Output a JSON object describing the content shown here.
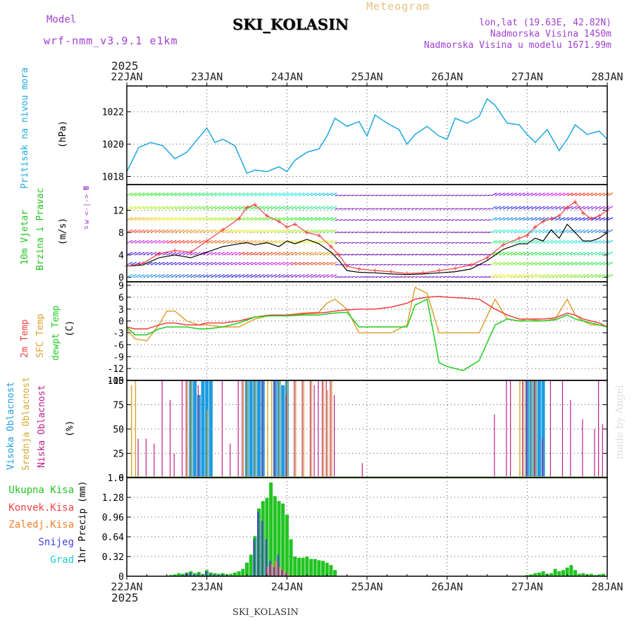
{
  "header": {
    "model_label": "Model",
    "model_name": "wrf-nmm_v3.9.1 e1km",
    "title": "SKI_KOLASIN",
    "meteogram_label": "Meteogram",
    "lonlat": "lon,lat (19.63E, 42.82N)",
    "elevation": "Nadmorska Visina 1450m",
    "model_elevation": "Nadmorska Visina u modelu 1671.99m",
    "year_top": "2025",
    "year_bottom": "2025",
    "footer_station": "SKI_KOLASIN",
    "credit": "made by Angel"
  },
  "colors": {
    "pressure": "#1ea8e0",
    "temp2m": "#f04040",
    "sfc": "#e0a030",
    "dewpt": "#20cc20",
    "total": "#22c422",
    "conv": "#f04040",
    "frozen": "#f08030",
    "snow": "#4444dd",
    "grad": "#22cccc",
    "cloud_high": "#1e9ce0",
    "cloud_mid": "#d8a830",
    "cloud_low": "#c0208a",
    "model_text": "#a040d0"
  },
  "chart_data": [
    {
      "type": "line",
      "name": "pressure",
      "y_title": "Pritisak na nivou mora",
      "unit": "(hPa)",
      "ylim": [
        1017.5,
        1023.6
      ],
      "yticks": [
        1018,
        1020,
        1022
      ],
      "x_days": [
        0,
        0.15,
        0.3,
        0.45,
        0.6,
        0.75,
        0.9,
        1.0,
        1.1,
        1.2,
        1.35,
        1.5,
        1.6,
        1.75,
        1.9,
        2.0,
        2.1,
        2.25,
        2.4,
        2.5,
        2.6,
        2.75,
        2.9,
        3.0,
        3.1,
        3.25,
        3.4,
        3.5,
        3.6,
        3.75,
        3.9,
        4.0,
        4.1,
        4.25,
        4.4,
        4.5,
        4.6,
        4.75,
        4.9,
        5.0,
        5.1,
        5.25,
        5.4,
        5.5,
        5.6,
        5.75,
        5.9,
        6.0
      ],
      "values": [
        1018.3,
        1019.8,
        1020.1,
        1019.9,
        1019.1,
        1019.5,
        1020.4,
        1021.0,
        1020.1,
        1020.3,
        1019.9,
        1018.2,
        1018.4,
        1018.3,
        1018.6,
        1018.3,
        1019.0,
        1019.5,
        1019.7,
        1020.5,
        1021.6,
        1021.1,
        1021.4,
        1020.5,
        1021.8,
        1021.3,
        1020.9,
        1020.0,
        1020.6,
        1021.1,
        1020.5,
        1020.3,
        1021.6,
        1021.3,
        1021.7,
        1022.8,
        1022.4,
        1021.3,
        1021.2,
        1020.6,
        1020.1,
        1020.9,
        1019.6,
        1020.3,
        1021.2,
        1020.6,
        1020.8,
        1020.3
      ]
    },
    {
      "type": "line",
      "name": "wind",
      "y_title_1": "10m Vjetar",
      "y_title_2": "Brzina i Pravac",
      "unit": "(m/s)",
      "compass": [
        "N",
        "w <-|-> E",
        "s"
      ],
      "ylim": [
        -0.8,
        16.6
      ],
      "yticks": [
        0,
        4,
        8,
        12
      ],
      "x_days": [
        0,
        0.2,
        0.4,
        0.6,
        0.8,
        1.0,
        1.2,
        1.4,
        1.5,
        1.6,
        1.75,
        1.9,
        2.0,
        2.1,
        2.25,
        2.4,
        2.55,
        2.65,
        2.75,
        2.9,
        3.1,
        3.3,
        3.5,
        3.7,
        3.9,
        4.1,
        4.3,
        4.5,
        4.7,
        4.9,
        5.0,
        5.1,
        5.2,
        5.3,
        5.4,
        5.5,
        5.6,
        5.7,
        5.8,
        5.9,
        6.0
      ],
      "speed_mean": [
        2.0,
        2.2,
        3.5,
        4.0,
        3.5,
        4.5,
        5.5,
        6.0,
        6.2,
        5.8,
        6.2,
        5.5,
        6.5,
        6.0,
        6.8,
        6.0,
        4.5,
        3.0,
        1.2,
        0.9,
        0.8,
        0.6,
        0.5,
        0.6,
        0.8,
        1.0,
        1.5,
        3.0,
        5.0,
        6.0,
        6.0,
        7.0,
        6.5,
        8.5,
        7.0,
        9.5,
        8.0,
        6.5,
        6.5,
        7.0,
        8.0
      ],
      "speed_gust": [
        2.0,
        2.5,
        4.2,
        4.8,
        4.5,
        6.5,
        8.5,
        10.5,
        12.5,
        13.0,
        11.0,
        10.0,
        9.0,
        9.5,
        8.0,
        7.5,
        5.5,
        4.0,
        2.0,
        1.5,
        1.2,
        1.0,
        0.7,
        0.8,
        1.2,
        1.6,
        2.2,
        3.5,
        5.8,
        7.0,
        7.5,
        9.0,
        10.0,
        10.5,
        11.0,
        12.5,
        13.5,
        11.5,
        10.5,
        11.0,
        12.0
      ]
    },
    {
      "type": "line",
      "name": "temperature",
      "y_title_1": "2m Temp",
      "y_title_2": "SFC Temp",
      "y_title_3": "dewpt Temp",
      "unit": "(C)",
      "ylim": [
        -15,
        9.9
      ],
      "yticks": [
        9,
        6,
        3,
        0,
        -3,
        -6,
        -9,
        -12,
        -15
      ],
      "x_days": [
        0,
        0.1,
        0.25,
        0.4,
        0.5,
        0.6,
        0.75,
        0.9,
        1.0,
        1.2,
        1.4,
        1.6,
        1.8,
        2.0,
        2.2,
        2.4,
        2.5,
        2.6,
        2.75,
        2.9,
        3.1,
        3.3,
        3.5,
        3.6,
        3.75,
        3.9,
        4.0,
        4.2,
        4.4,
        4.6,
        4.75,
        4.9,
        5.0,
        5.2,
        5.35,
        5.5,
        5.6,
        5.7,
        5.8,
        5.9,
        6.0
      ],
      "t2m": [
        -1.5,
        -2.0,
        -2.0,
        -1.0,
        -0.5,
        -0.5,
        -1.0,
        -1.0,
        -0.5,
        -0.5,
        0.0,
        1.0,
        1.5,
        1.5,
        1.8,
        2.0,
        2.2,
        2.5,
        2.8,
        3.0,
        3.0,
        3.5,
        4.5,
        5.5,
        6.0,
        6.2,
        6.0,
        5.8,
        5.5,
        3.0,
        1.5,
        0.5,
        0.5,
        0.5,
        0.8,
        2.0,
        1.5,
        0.5,
        0.0,
        -0.5,
        -1.5
      ],
      "sfc": [
        -2.0,
        -4.5,
        -5.0,
        -1.0,
        2.5,
        2.5,
        0.0,
        -1.0,
        -1.0,
        -1.5,
        -1.5,
        0.5,
        1.5,
        1.5,
        2.0,
        2.2,
        4.5,
        5.5,
        3.0,
        -3.0,
        -3.0,
        -3.0,
        -1.0,
        8.5,
        7.0,
        -3.0,
        -3.0,
        -3.0,
        -3.0,
        5.5,
        0.5,
        0.0,
        0.5,
        0.0,
        0.5,
        5.5,
        1.5,
        0.0,
        -1.0,
        -1.0,
        -1.5
      ],
      "dewpt": [
        -1.5,
        -3.5,
        -3.5,
        -2.0,
        -1.5,
        -1.5,
        -1.5,
        -2.0,
        -2.0,
        -1.5,
        -0.5,
        1.0,
        1.3,
        1.3,
        1.5,
        1.5,
        1.8,
        2.0,
        2.2,
        -1.5,
        -1.5,
        -1.5,
        -1.5,
        4.0,
        5.5,
        -10.5,
        -11.5,
        -12.5,
        -10.0,
        -1.0,
        0.5,
        0.0,
        0.0,
        0.0,
        0.3,
        1.5,
        0.5,
        0.0,
        -0.5,
        -1.0,
        -1.5
      ]
    },
    {
      "type": "bar",
      "name": "clouds",
      "y_title_1": "Visoka Oblacnost",
      "y_title_2": "Srednja Oblacnost",
      "y_title_3": "Niska Oblacnost",
      "unit": "(%)",
      "ylim": [
        0,
        100
      ],
      "yticks": [
        0,
        25,
        50,
        75,
        100
      ],
      "high": [
        [
          0.8,
          100
        ],
        [
          0.85,
          100
        ],
        [
          0.9,
          85
        ],
        [
          0.95,
          100
        ],
        [
          1.0,
          100
        ],
        [
          1.05,
          100
        ],
        [
          1.5,
          100
        ],
        [
          1.55,
          100
        ],
        [
          1.6,
          100
        ],
        [
          1.65,
          100
        ],
        [
          1.7,
          100
        ],
        [
          1.85,
          100
        ],
        [
          1.9,
          100
        ],
        [
          1.95,
          95
        ],
        [
          2.0,
          100
        ],
        [
          5.0,
          100
        ],
        [
          5.05,
          100
        ],
        [
          5.1,
          100
        ],
        [
          5.15,
          100
        ],
        [
          5.2,
          100
        ]
      ],
      "mid": [
        [
          0.05,
          95
        ],
        [
          0.1,
          100
        ],
        [
          0.75,
          100
        ],
        [
          0.8,
          100
        ],
        [
          1.0,
          70
        ],
        [
          1.45,
          100
        ],
        [
          1.5,
          100
        ],
        [
          1.6,
          100
        ],
        [
          1.75,
          100
        ],
        [
          1.8,
          100
        ],
        [
          1.9,
          100
        ],
        [
          2.0,
          100
        ],
        [
          2.1,
          100
        ],
        [
          2.2,
          100
        ],
        [
          2.3,
          100
        ],
        [
          2.45,
          100
        ],
        [
          2.5,
          90
        ],
        [
          2.55,
          100
        ],
        [
          4.9,
          100
        ],
        [
          4.95,
          100
        ],
        [
          5.05,
          100
        ],
        [
          5.1,
          100
        ]
      ],
      "low": [
        [
          0.15,
          40
        ],
        [
          0.25,
          40
        ],
        [
          0.35,
          35
        ],
        [
          0.45,
          100
        ],
        [
          0.55,
          80
        ],
        [
          0.6,
          25
        ],
        [
          0.7,
          100
        ],
        [
          0.75,
          100
        ],
        [
          0.9,
          95
        ],
        [
          1.2,
          100
        ],
        [
          1.3,
          35
        ],
        [
          1.4,
          100
        ],
        [
          1.45,
          100
        ],
        [
          1.7,
          100
        ],
        [
          1.85,
          100
        ],
        [
          2.0,
          85
        ],
        [
          2.1,
          100
        ],
        [
          2.2,
          100
        ],
        [
          2.3,
          100
        ],
        [
          2.35,
          95
        ],
        [
          2.4,
          100
        ],
        [
          2.45,
          100
        ],
        [
          2.5,
          100
        ],
        [
          2.55,
          100
        ],
        [
          2.6,
          85
        ],
        [
          2.95,
          15
        ],
        [
          4.6,
          65
        ],
        [
          4.75,
          100
        ],
        [
          4.8,
          100
        ],
        [
          4.95,
          100
        ],
        [
          5.0,
          100
        ],
        [
          5.1,
          100
        ],
        [
          5.2,
          40
        ],
        [
          5.3,
          100
        ],
        [
          5.45,
          100
        ],
        [
          5.55,
          80
        ],
        [
          5.7,
          60
        ],
        [
          5.85,
          50
        ],
        [
          5.9,
          100
        ],
        [
          5.95,
          55
        ]
      ]
    },
    {
      "type": "bar",
      "name": "precip",
      "y_title": "1hr Precip (mm)",
      "legend": [
        "Ukupna Kisa",
        "Konvek.Kisa",
        "Zaledj.Kisa",
        "Snijeg",
        "Grad"
      ],
      "ylim": [
        0,
        1.6
      ],
      "yticks": [
        0,
        0.32,
        0.64,
        0.96,
        1.28,
        1.6
      ],
      "x_days": [
        0.55,
        0.6,
        0.65,
        0.7,
        0.75,
        0.8,
        0.85,
        0.9,
        0.95,
        1.0,
        1.05,
        1.1,
        1.15,
        1.2,
        1.25,
        1.3,
        1.35,
        1.4,
        1.45,
        1.5,
        1.55,
        1.6,
        1.65,
        1.7,
        1.75,
        1.8,
        1.85,
        1.9,
        1.95,
        2.0,
        2.05,
        2.1,
        2.15,
        2.2,
        2.25,
        2.3,
        2.35,
        2.4,
        2.45,
        2.5,
        2.55,
        2.6,
        5.0,
        5.05,
        5.1,
        5.15,
        5.2,
        5.25,
        5.3,
        5.35,
        5.4,
        5.45,
        5.5,
        5.55,
        5.6,
        5.65,
        5.7,
        5.75,
        5.8,
        5.85,
        5.9,
        5.95
      ],
      "total": [
        0.02,
        0.03,
        0.05,
        0.04,
        0.06,
        0.08,
        0.05,
        0.07,
        0.04,
        0.1,
        0.06,
        0.05,
        0.04,
        0.05,
        0.03,
        0.04,
        0.06,
        0.08,
        0.12,
        0.22,
        0.35,
        0.65,
        1.1,
        1.22,
        1.27,
        1.52,
        1.3,
        1.22,
        1.18,
        1.0,
        0.6,
        0.32,
        0.3,
        0.3,
        0.32,
        0.28,
        0.28,
        0.26,
        0.25,
        0.22,
        0.18,
        0.1,
        0.02,
        0.03,
        0.05,
        0.06,
        0.08,
        0.04,
        0.05,
        0.12,
        0.08,
        0.1,
        0.14,
        0.18,
        0.1,
        0.04,
        0.05,
        0.03,
        0.04,
        0.02,
        0.03,
        0.04
      ],
      "snow": [
        0,
        0,
        0,
        0.02,
        0.05,
        0.06,
        0.03,
        0.04,
        0.02,
        0.08,
        0.04,
        0.03,
        0.02,
        0.03,
        0,
        0,
        0,
        0,
        0,
        0,
        0,
        0.6,
        1.05,
        0.9,
        0.6,
        0.25,
        0.15,
        0.35,
        0.1,
        0.05,
        0,
        0,
        0,
        0,
        0,
        0,
        0,
        0,
        0,
        0,
        0,
        0,
        0,
        0,
        0,
        0,
        0,
        0,
        0,
        0,
        0,
        0,
        0,
        0,
        0,
        0,
        0,
        0,
        0,
        0,
        0,
        0
      ],
      "frozen": [
        0,
        0,
        0,
        0,
        0,
        0,
        0,
        0,
        0,
        0,
        0,
        0,
        0,
        0,
        0,
        0,
        0,
        0,
        0,
        0,
        0,
        0,
        0,
        0,
        0.15,
        0.2,
        0.25,
        0.15,
        0.1,
        0.05,
        0,
        0,
        0,
        0,
        0,
        0,
        0,
        0,
        0,
        0,
        0,
        0,
        0,
        0,
        0,
        0,
        0,
        0,
        0,
        0,
        0,
        0,
        0,
        0,
        0,
        0,
        0,
        0,
        0,
        0,
        0,
        0
      ]
    }
  ],
  "x_axis": {
    "top_labels": [
      "22JAN",
      "23JAN",
      "24JAN",
      "25JAN",
      "26JAN",
      "27JAN",
      "28JAN"
    ],
    "bottom_labels": [
      "22JAN",
      "23JAN",
      "24JAN",
      "25JAN",
      "26JAN",
      "27JAN",
      "28JAN"
    ]
  }
}
